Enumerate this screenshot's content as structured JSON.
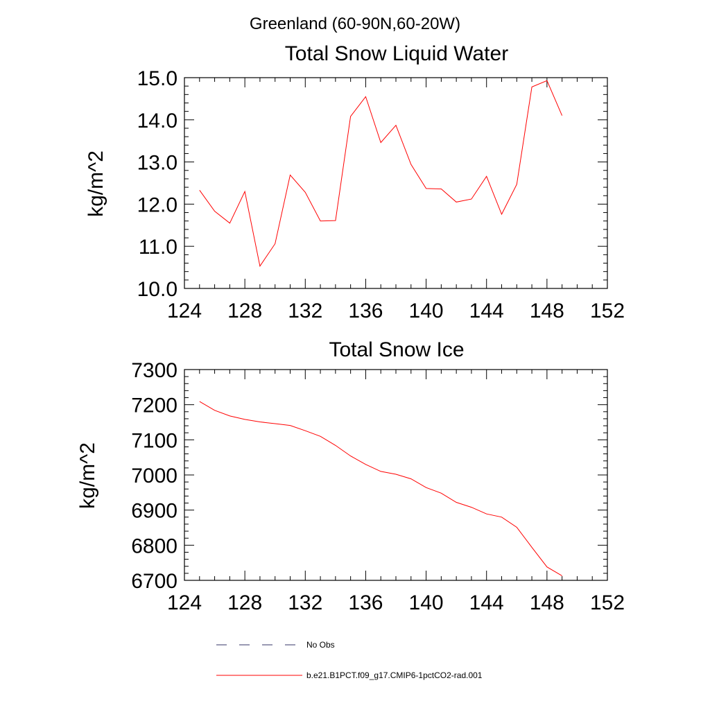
{
  "figure": {
    "title": "Greenland (60-90N,60-20W)"
  },
  "chart_data": [
    {
      "type": "line",
      "title": "Total Snow Liquid Water",
      "xlabel": "",
      "ylabel": "kg/m^2",
      "xlim": [
        124,
        152
      ],
      "ylim": [
        10.0,
        15.0
      ],
      "x_major_ticks": [
        124,
        128,
        132,
        136,
        140,
        144,
        148,
        152
      ],
      "x_tick_labels": [
        "124",
        "128",
        "132",
        "136",
        "140",
        "144",
        "148",
        "152"
      ],
      "y_major_ticks": [
        10.0,
        11.0,
        12.0,
        13.0,
        14.0,
        15.0
      ],
      "y_tick_labels": [
        "10.0",
        "11.0",
        "12.0",
        "13.0",
        "14.0",
        "15.0"
      ],
      "grid": false,
      "series": [
        {
          "name": "b.e21.B1PCT.f09_g17.CMIP6-1pctCO2-rad.001",
          "color": "#ff0000",
          "x": [
            125,
            126,
            127,
            128,
            129,
            130,
            131,
            132,
            133,
            134,
            135,
            136,
            137,
            138,
            139,
            140,
            141,
            142,
            143,
            144,
            145,
            146,
            147,
            148,
            149
          ],
          "values": [
            12.33,
            11.83,
            11.55,
            12.3,
            10.53,
            11.06,
            12.69,
            12.28,
            11.6,
            11.61,
            14.08,
            14.55,
            13.46,
            13.87,
            12.94,
            12.37,
            12.36,
            12.05,
            12.12,
            12.66,
            11.76,
            12.47,
            14.78,
            14.93,
            14.1
          ]
        }
      ]
    },
    {
      "type": "line",
      "title": "Total Snow Ice",
      "xlabel": "",
      "ylabel": "kg/m^2",
      "xlim": [
        124,
        152
      ],
      "ylim": [
        6700,
        7300
      ],
      "x_major_ticks": [
        124,
        128,
        132,
        136,
        140,
        144,
        148,
        152
      ],
      "x_tick_labels": [
        "124",
        "128",
        "132",
        "136",
        "140",
        "144",
        "148",
        "152"
      ],
      "y_major_ticks": [
        6700,
        6800,
        6900,
        7000,
        7100,
        7200,
        7300
      ],
      "y_tick_labels": [
        "6700",
        "6800",
        "6900",
        "7000",
        "7100",
        "7200",
        "7300"
      ],
      "grid": false,
      "series": [
        {
          "name": "b.e21.B1PCT.f09_g17.CMIP6-1pctCO2-rad.001",
          "color": "#ff0000",
          "x": [
            125,
            126,
            127,
            128,
            129,
            130,
            131,
            132,
            133,
            134,
            135,
            136,
            137,
            138,
            139,
            140,
            141,
            142,
            143,
            144,
            145,
            146,
            147,
            148,
            149
          ],
          "values": [
            7209,
            7184,
            7168,
            7158,
            7151,
            7146,
            7141,
            7126,
            7110,
            7084,
            7054,
            7030,
            7010,
            7002,
            6989,
            6964,
            6948,
            6922,
            6908,
            6889,
            6880,
            6851,
            6794,
            6738,
            6713
          ]
        }
      ]
    }
  ],
  "legend": {
    "placement": "bottom",
    "items": [
      {
        "label": "No Obs",
        "color": "#333366",
        "style": "dashed"
      },
      {
        "label": "b.e21.B1PCT.f09_g17.CMIP6-1pctCO2-rad.001",
        "color": "#ff0000",
        "style": "solid"
      }
    ]
  }
}
